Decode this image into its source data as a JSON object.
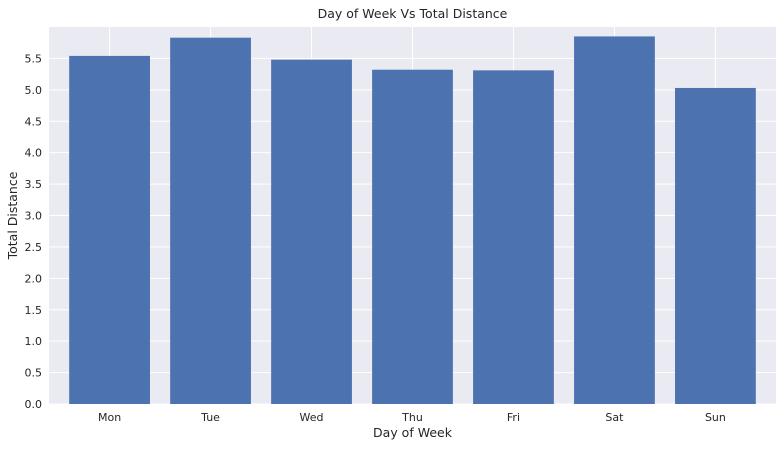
{
  "chart_data": {
    "type": "bar",
    "title": "Day of Week Vs Total Distance",
    "xlabel": "Day of Week",
    "ylabel": "Total Distance",
    "categories": [
      "Mon",
      "Tue",
      "Wed",
      "Thu",
      "Fri",
      "Sat",
      "Sun"
    ],
    "values": [
      5.54,
      5.83,
      5.48,
      5.32,
      5.31,
      5.85,
      5.03
    ],
    "ylim": [
      0,
      6.0
    ],
    "yticks": [
      0.0,
      0.5,
      1.0,
      1.5,
      2.0,
      2.5,
      3.0,
      3.5,
      4.0,
      4.5,
      5.0,
      5.5
    ],
    "ytick_labels": [
      "0.0",
      "0.5",
      "1.0",
      "1.5",
      "2.0",
      "2.5",
      "3.0",
      "3.5",
      "4.0",
      "4.5",
      "5.0",
      "5.5"
    ],
    "grid": true,
    "legend": "none",
    "colors": {
      "bar": "#4c72b0",
      "plot_background": "#eaeaf2",
      "grid": "#ffffff",
      "text": "#262626"
    }
  }
}
